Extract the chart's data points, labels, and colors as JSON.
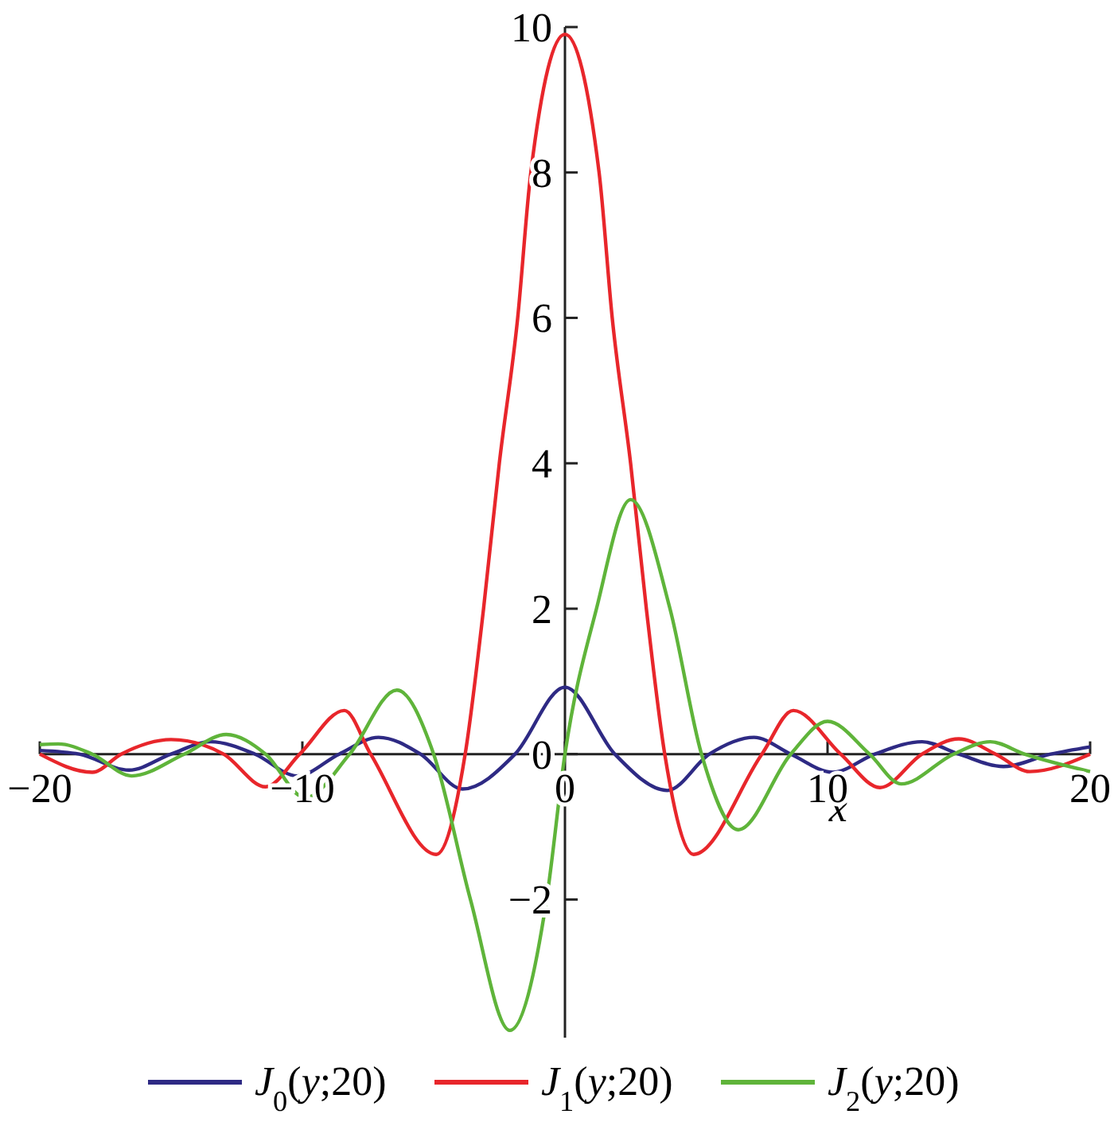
{
  "chart_data": {
    "type": "line",
    "xlabel": "x",
    "xlim": [
      -20,
      20
    ],
    "ylim": [
      -3.9,
      10
    ],
    "xticks": [
      -20,
      -10,
      0,
      10,
      20
    ],
    "yticks": [
      -2,
      0,
      2,
      4,
      6,
      8,
      10
    ],
    "grid": false,
    "legend": "bottom",
    "line_style": "solid",
    "marker": "none",
    "series": [
      {
        "name": "J$_{0}$(y;20)",
        "color": "#2e2a84",
        "x": [
          -20,
          -18.5,
          -16.6,
          -15,
          -13.5,
          -11.8,
          -10.2,
          -8.6,
          -7.1,
          -5.5,
          -3.9,
          -1.9,
          0,
          1.9,
          3.9,
          5.5,
          7.2,
          8.6,
          10.2,
          11.8,
          13.6,
          15,
          16.7,
          18.5,
          20
        ],
        "values": [
          0.05,
          0,
          -0.22,
          0,
          0.17,
          0,
          -0.3,
          0,
          0.23,
          0,
          -0.48,
          0,
          0.92,
          0,
          -0.5,
          0,
          0.23,
          0,
          -0.25,
          0,
          0.17,
          0,
          -0.17,
          0,
          0.1
        ]
      },
      {
        "name": "J$_{1}$(y;20)",
        "color": "#e8262b",
        "x": [
          -20,
          -18,
          -16.9,
          -15,
          -13,
          -11.4,
          -10.1,
          -8.4,
          -7.4,
          -4.9,
          -3.8,
          -3.1,
          -2.5,
          -1.8,
          -1.3,
          0,
          1.3,
          1.8,
          2.5,
          3.1,
          3.8,
          4.9,
          7.5,
          8.7,
          10.5,
          12,
          13.6,
          15,
          16.4,
          17.7,
          20
        ],
        "values": [
          0,
          -0.25,
          0,
          0.2,
          0,
          -0.45,
          0,
          0.6,
          0,
          -1.38,
          0,
          2,
          4,
          6,
          8,
          9.9,
          8,
          6,
          4,
          2,
          0,
          -1.38,
          0,
          0.6,
          0,
          -0.46,
          0,
          0.21,
          0,
          -0.24,
          0
        ]
      },
      {
        "name": "J$_{2}$(y;20)",
        "color": "#5fb43a",
        "x": [
          -20,
          -19.3,
          -18,
          -16.5,
          -14.5,
          -12.9,
          -11.4,
          -9.9,
          -8.2,
          -6.4,
          -5,
          -3.6,
          -2.1,
          -0.7,
          0,
          1.2,
          2.5,
          4,
          5.2,
          6.6,
          8.6,
          10,
          11.6,
          12.8,
          14.8,
          16.2,
          17.5,
          20
        ],
        "values": [
          0.13,
          0.14,
          0,
          -0.3,
          0,
          0.27,
          0,
          -0.6,
          0,
          0.88,
          0,
          -2,
          -3.8,
          -2,
          0,
          2,
          3.5,
          2,
          0,
          -1.04,
          0,
          0.45,
          0,
          -0.41,
          0,
          0.17,
          0,
          -0.24
        ]
      }
    ]
  }
}
